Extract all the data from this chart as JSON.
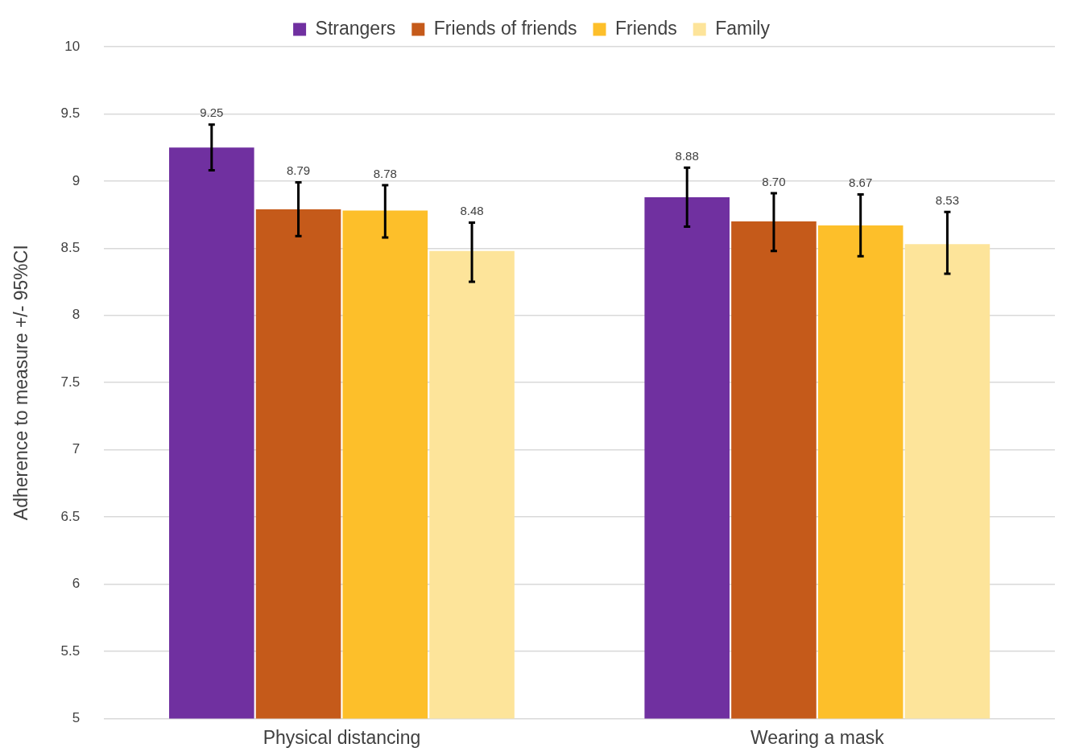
{
  "chart_data": {
    "type": "bar",
    "ylabel": "Adherence to measure +/- 95%CI",
    "categories": [
      "Physical distancing",
      "Wearing a mask"
    ],
    "series": [
      {
        "name": "Strangers",
        "color": "#7030a0",
        "values": [
          9.25,
          8.88
        ],
        "errors": [
          [
            9.08,
            9.42
          ],
          [
            8.66,
            9.1
          ]
        ],
        "value_labels": [
          "9.25",
          "8.88"
        ]
      },
      {
        "name": "Friends of friends",
        "color": "#c55a1a",
        "values": [
          8.79,
          8.7
        ],
        "errors": [
          [
            8.59,
            8.99
          ],
          [
            8.48,
            8.91
          ]
        ],
        "value_labels": [
          "8.79",
          "8.70"
        ]
      },
      {
        "name": "Friends",
        "color": "#fdbf2a",
        "values": [
          8.78,
          8.67
        ],
        "errors": [
          [
            8.58,
            8.97
          ],
          [
            8.44,
            8.9
          ]
        ],
        "value_labels": [
          "8.78",
          "8.67"
        ]
      },
      {
        "name": "Family",
        "color": "#fde49a",
        "values": [
          8.48,
          8.53
        ],
        "errors": [
          [
            8.25,
            8.69
          ],
          [
            8.31,
            8.77
          ]
        ],
        "value_labels": [
          "8.48",
          "8.53"
        ]
      }
    ],
    "ylim": [
      5,
      10
    ],
    "yticks": [
      5,
      5.5,
      6,
      6.5,
      7,
      7.5,
      8,
      8.5,
      9,
      9.5,
      10
    ],
    "grid": "y",
    "legend": "top"
  }
}
